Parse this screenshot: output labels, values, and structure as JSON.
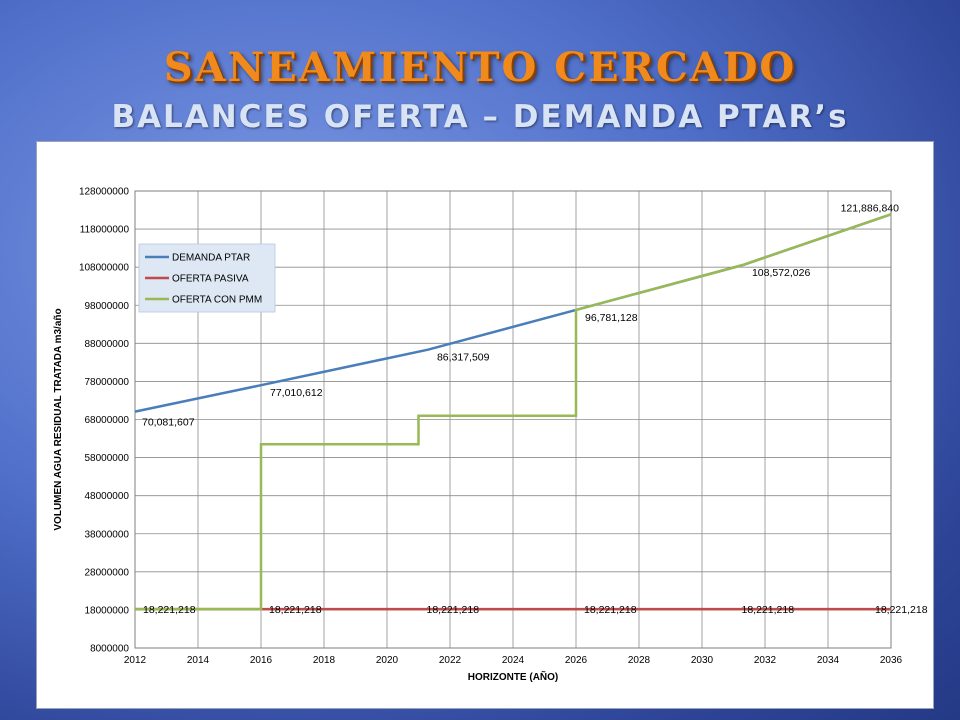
{
  "slide": {
    "title": "SANEAMIENTO CERCADO",
    "subtitle": "BALANCES OFERTA – DEMANDA PTAR’s"
  },
  "chart_data": {
    "type": "line",
    "title": "",
    "xlabel": "HORIZONTE (AÑO)",
    "ylabel": "VOLUMEN AGUA RESIDUAL TRATADA m3/año",
    "xlim": [
      2012,
      2036
    ],
    "ylim": [
      8000000,
      128000000
    ],
    "x_ticks": [
      2012,
      2014,
      2016,
      2018,
      2020,
      2022,
      2024,
      2026,
      2028,
      2030,
      2032,
      2034,
      2036
    ],
    "y_ticks": [
      8000000,
      18000000,
      28000000,
      38000000,
      48000000,
      58000000,
      68000000,
      78000000,
      88000000,
      98000000,
      108000000,
      118000000,
      128000000
    ],
    "grid": true,
    "legend_position": "top-left",
    "series": [
      {
        "name": "DEMANDA PTAR",
        "color": "#4a7ebb",
        "points": [
          [
            2012,
            70081607
          ],
          [
            2016,
            77010612
          ],
          [
            2021.3,
            86317509
          ],
          [
            2026,
            96781128
          ],
          [
            2031.3,
            108572026
          ],
          [
            2036,
            121886840
          ]
        ]
      },
      {
        "name": "OFERTA PASIVA",
        "color": "#be4b48",
        "points": [
          [
            2012,
            18221218
          ],
          [
            2036,
            18221218
          ]
        ]
      },
      {
        "name": "OFERTA CON PMM",
        "color": "#98b954",
        "points": [
          [
            2012,
            18221218
          ],
          [
            2016,
            18221218
          ],
          [
            2016,
            61500000
          ],
          [
            2021,
            61500000
          ],
          [
            2021,
            69000000
          ],
          [
            2026,
            69000000
          ],
          [
            2026,
            96781128
          ],
          [
            2031.3,
            108572026
          ],
          [
            2036,
            121886840
          ]
        ]
      }
    ],
    "data_labels": [
      {
        "x": 2012,
        "y": 70081607,
        "text": "70,081,607"
      },
      {
        "x": 2016,
        "y": 77010612,
        "text": "77,010,612"
      },
      {
        "x": 2021.3,
        "y": 86317509,
        "text": "86,317,509"
      },
      {
        "x": 2026,
        "y": 96781128,
        "text": "96,781,128"
      },
      {
        "x": 2031.3,
        "y": 108572026,
        "text": "108,572,026"
      },
      {
        "x": 2036,
        "y": 121886840,
        "text": "121,886,840"
      },
      {
        "x": 2012,
        "y": 18221218,
        "text": "18,221,218"
      },
      {
        "x": 2016,
        "y": 18221218,
        "text": "18,221,218"
      },
      {
        "x": 2021,
        "y": 18221218,
        "text": "18,221,218"
      },
      {
        "x": 2026,
        "y": 18221218,
        "text": "18,221,218"
      },
      {
        "x": 2031,
        "y": 18221218,
        "text": "18,221,218"
      },
      {
        "x": 2036,
        "y": 18221218,
        "text": "18,221,218"
      }
    ]
  }
}
